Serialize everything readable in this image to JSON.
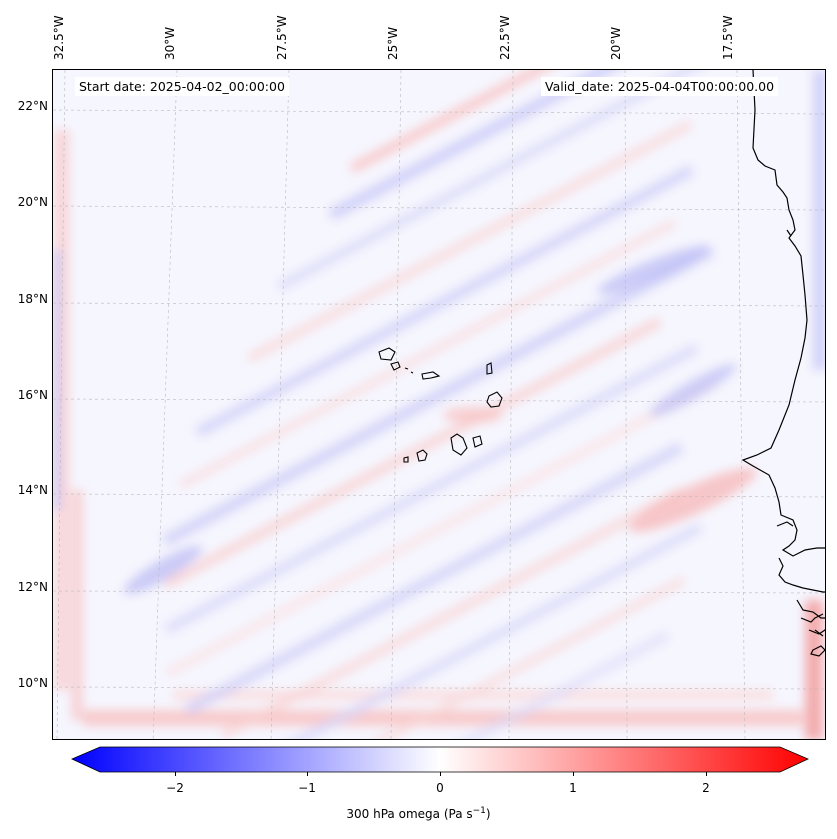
{
  "map": {
    "title_left": "Start date: 2025-04-02_00:00:00",
    "title_right": "Valid_date: 2025-04-04T00:00:00.00",
    "variable": "300 hPa omega",
    "units_prefix": "(Pa s",
    "units_exp": "−1",
    "units_suffix": ")",
    "lon_labels": [
      "32.5°W",
      "30°W",
      "27.5°W",
      "25°W",
      "22.5°W",
      "20°W",
      "17.5°W"
    ],
    "lat_labels": [
      "22°N",
      "20°N",
      "18°N",
      "16°N",
      "14°N",
      "12°N",
      "10°N"
    ],
    "colorbar": {
      "ticks": [
        "−2",
        "−1",
        "0",
        "1",
        "2"
      ],
      "min": -2.6,
      "max": 2.6,
      "colors": {
        "negative": "#0000ff",
        "zero": "#ffffff",
        "positive": "#ff0000"
      }
    },
    "features": [
      "Cape Verde islands",
      "West African coastline"
    ]
  }
}
